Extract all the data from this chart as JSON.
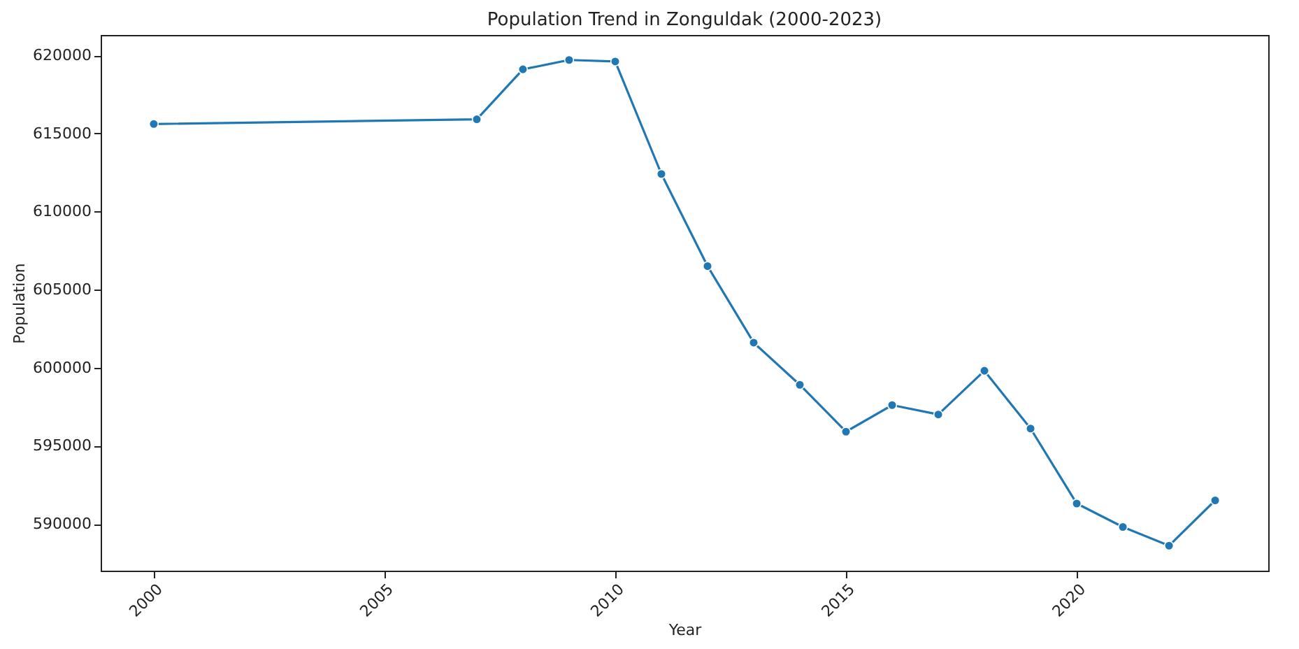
{
  "chart_data": {
    "type": "line",
    "title": "Population Trend in Zonguldak (2000-2023)",
    "xlabel": "Year",
    "ylabel": "Population",
    "x": [
      2000,
      2007,
      2008,
      2009,
      2010,
      2011,
      2012,
      2013,
      2014,
      2015,
      2016,
      2017,
      2018,
      2019,
      2020,
      2021,
      2022,
      2023
    ],
    "series": [
      {
        "color": "#1f77b4",
        "values": [
          615600,
          615900,
          619100,
          619700,
          619600,
          612400,
          606500,
          601600,
          598900,
          595900,
          597600,
          597000,
          599800,
          596100,
          591300,
          589800,
          588600,
          591500
        ]
      }
    ],
    "xlim": [
      1998.85,
      2024.15
    ],
    "xticks": [
      2000,
      2005,
      2010,
      2015,
      2020
    ],
    "ylim": [
      587000,
      621300
    ],
    "yticks": [
      590000,
      595000,
      600000,
      605000,
      610000,
      615000,
      620000
    ],
    "grid": false,
    "marker": "circle",
    "line_style": "solid"
  }
}
